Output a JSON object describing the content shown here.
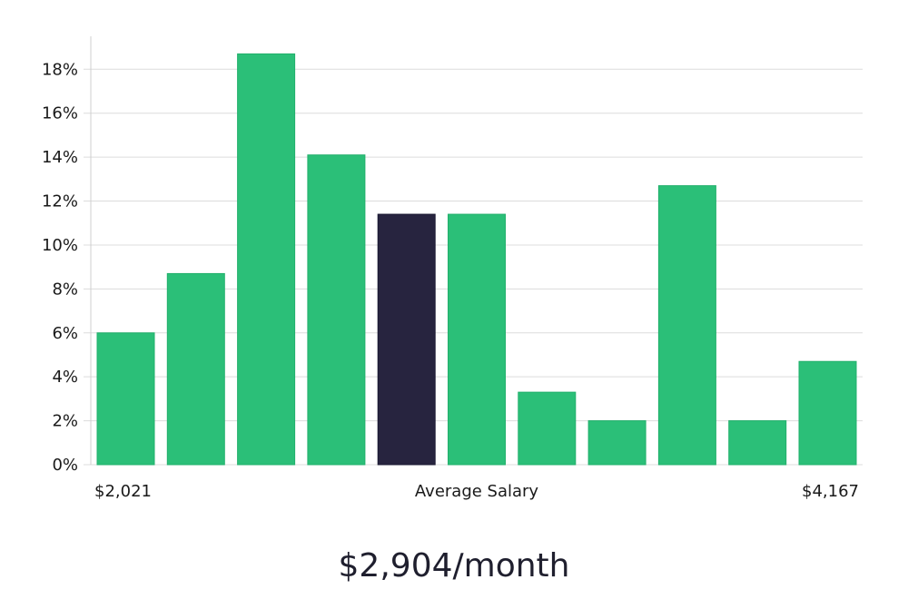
{
  "chart_data": {
    "type": "bar",
    "values": [
      6.0,
      8.7,
      18.7,
      14.1,
      11.4,
      11.4,
      3.3,
      2.0,
      12.7,
      2.0,
      4.7
    ],
    "highlight_index": 4,
    "ylim": [
      0,
      19.5
    ],
    "yticks": [
      0,
      2,
      4,
      6,
      8,
      10,
      12,
      14,
      16,
      18
    ],
    "ytick_suffix": "%",
    "x_min_label": "$2,021",
    "x_center_label": "Average Salary",
    "x_max_label": "$4,167",
    "grid": true,
    "colors": {
      "bar": "#2bbf78",
      "highlight": "#27243f",
      "grid": "#dcdcdc",
      "axis": "#cfcfcf"
    }
  },
  "headline": "$2,904/month"
}
